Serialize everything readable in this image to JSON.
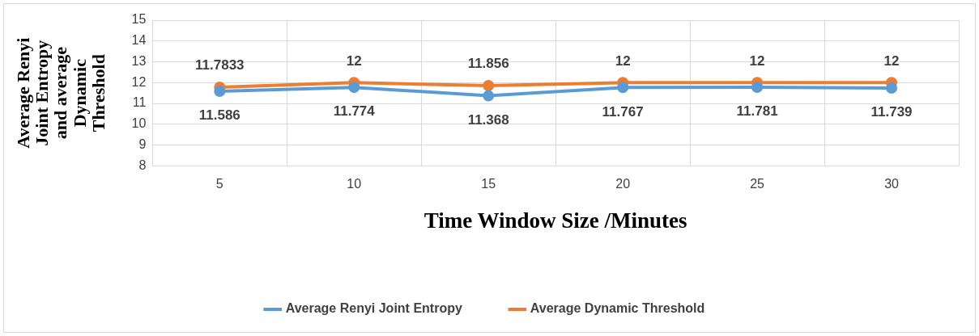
{
  "chart_data": {
    "type": "line",
    "xlabel": "Time Window Size /Minutes",
    "ylabel": "Average Renyi Joint Entropy and average Dynamic Threshold",
    "categories": [
      "5",
      "10",
      "15",
      "20",
      "25",
      "30"
    ],
    "series": [
      {
        "name": "Average Renyi Joint Entropy",
        "color": "#5b9bd5",
        "values": [
          11.586,
          11.774,
          11.368,
          11.767,
          11.781,
          11.739
        ]
      },
      {
        "name": "Average Dynamic Threshold",
        "color": "#ed7d31",
        "values": [
          11.7833,
          12,
          11.856,
          12,
          12,
          12
        ]
      }
    ],
    "ylim": [
      8,
      15
    ],
    "yticks": [
      8,
      9,
      10,
      11,
      12,
      13,
      14,
      15
    ],
    "grid": true,
    "legend": "bottom",
    "marker": "circle",
    "line_style": "solid",
    "data_labels": true
  }
}
